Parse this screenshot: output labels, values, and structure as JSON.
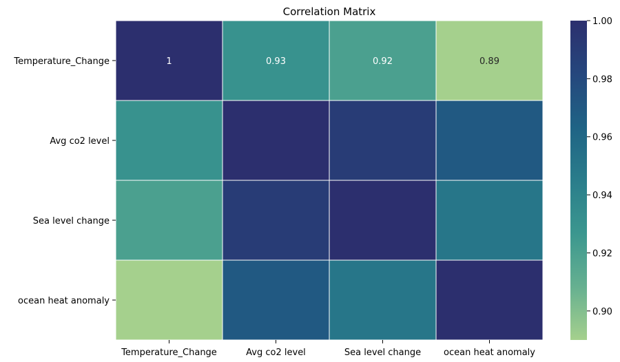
{
  "chart_data": {
    "type": "heatmap",
    "title": "Correlation Matrix",
    "rows": [
      "Temperature_Change",
      "Avg co2 level",
      "Sea level change",
      "ocean heat anomaly"
    ],
    "columns": [
      "Temperature_Change",
      "Avg co2 level",
      "Sea level change",
      "ocean heat anomaly"
    ],
    "values": [
      [
        1.0,
        0.93,
        0.92,
        0.89
      ],
      [
        0.93,
        1.0,
        0.99,
        0.97
      ],
      [
        0.92,
        0.99,
        1.0,
        0.95
      ],
      [
        0.89,
        0.97,
        0.95,
        1.0
      ]
    ],
    "annotations": [
      [
        "1",
        "0.93",
        "0.92",
        "0.89"
      ],
      [
        "",
        "",
        "",
        ""
      ],
      [
        "",
        "",
        "",
        ""
      ],
      [
        "",
        "",
        "",
        ""
      ]
    ],
    "colorbar": {
      "vmin": 0.89,
      "vmax": 1.0,
      "ticks": [
        0.9,
        0.92,
        0.94,
        0.96,
        0.98,
        1.0
      ],
      "tick_labels": [
        "0.90",
        "0.92",
        "0.94",
        "0.96",
        "0.98",
        "1.00"
      ],
      "colormap": "crest",
      "color_stops": [
        "#a5d08d",
        "#66b090",
        "#3b978f",
        "#2a7d8b",
        "#1f6385",
        "#25477d",
        "#2c2f6e"
      ]
    },
    "annotation_colors": {
      "light": "#ffffff",
      "dark": "#262626"
    },
    "grid_line_color": "#ffffff"
  }
}
